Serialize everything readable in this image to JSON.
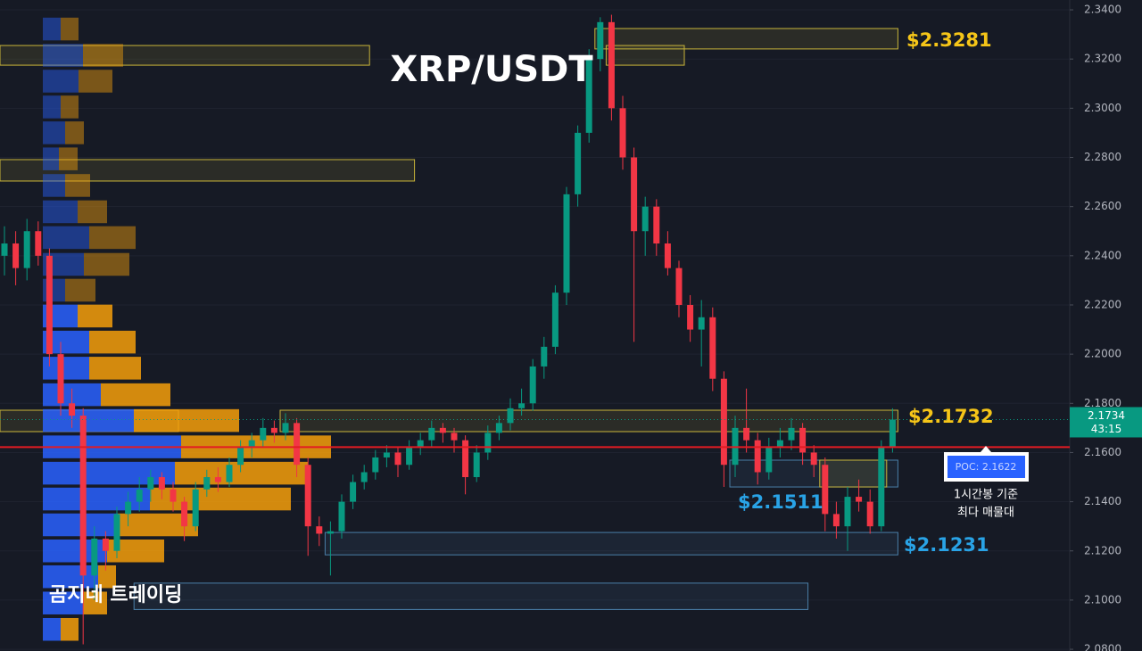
{
  "chart_data": {
    "type": "candlestick",
    "title": "XRP/USDT",
    "watermark": "곰지네 트레이딩",
    "ylim": [
      2.0793,
      2.344
    ],
    "yticks": [
      {
        "value": 2.34,
        "label": "2.3400"
      },
      {
        "value": 2.32,
        "label": "2.3200"
      },
      {
        "value": 2.3,
        "label": "2.3000"
      },
      {
        "value": 2.28,
        "label": "2.2800"
      },
      {
        "value": 2.26,
        "label": "2.2600"
      },
      {
        "value": 2.24,
        "label": "2.2400"
      },
      {
        "value": 2.22,
        "label": "2.2200"
      },
      {
        "value": 2.2,
        "label": "2.2000"
      },
      {
        "value": 2.18,
        "label": "2.1800"
      },
      {
        "value": 2.16,
        "label": "2.1600"
      },
      {
        "value": 2.14,
        "label": "2.1400"
      },
      {
        "value": 2.12,
        "label": "2.1200"
      },
      {
        "value": 2.1,
        "label": "2.1000"
      },
      {
        "value": 2.08,
        "label": "2.0800"
      }
    ],
    "grid": true,
    "up_color": "#089981",
    "down_color": "#f23645",
    "ohlc": [
      [
        2.24,
        2.252,
        2.232,
        2.245
      ],
      [
        2.245,
        2.25,
        2.228,
        2.235
      ],
      [
        2.235,
        2.255,
        2.23,
        2.25
      ],
      [
        2.25,
        2.254,
        2.236,
        2.24
      ],
      [
        2.24,
        2.243,
        2.195,
        2.2
      ],
      [
        2.2,
        2.205,
        2.175,
        2.18
      ],
      [
        2.18,
        2.186,
        2.17,
        2.175
      ],
      [
        2.175,
        2.178,
        2.082,
        2.11
      ],
      [
        2.11,
        2.13,
        2.1,
        2.125
      ],
      [
        2.125,
        2.128,
        2.112,
        2.12
      ],
      [
        2.12,
        2.138,
        2.117,
        2.135
      ],
      [
        2.135,
        2.144,
        2.13,
        2.14
      ],
      [
        2.14,
        2.15,
        2.136,
        2.145
      ],
      [
        2.145,
        2.153,
        2.14,
        2.15
      ],
      [
        2.15,
        2.152,
        2.141,
        2.145
      ],
      [
        2.145,
        2.148,
        2.136,
        2.14
      ],
      [
        2.14,
        2.142,
        2.124,
        2.13
      ],
      [
        2.13,
        2.148,
        2.128,
        2.145
      ],
      [
        2.145,
        2.153,
        2.142,
        2.15
      ],
      [
        2.15,
        2.154,
        2.144,
        2.148
      ],
      [
        2.148,
        2.158,
        2.146,
        2.155
      ],
      [
        2.155,
        2.165,
        2.152,
        2.162
      ],
      [
        2.162,
        2.168,
        2.158,
        2.165
      ],
      [
        2.165,
        2.174,
        2.162,
        2.17
      ],
      [
        2.17,
        2.173,
        2.164,
        2.168
      ],
      [
        2.168,
        2.176,
        2.165,
        2.172
      ],
      [
        2.172,
        2.174,
        2.15,
        2.155
      ],
      [
        2.155,
        2.158,
        2.118,
        2.13
      ],
      [
        2.13,
        2.134,
        2.122,
        2.127
      ],
      [
        2.127,
        2.132,
        2.11,
        2.128
      ],
      [
        2.128,
        2.143,
        2.125,
        2.14
      ],
      [
        2.14,
        2.151,
        2.137,
        2.148
      ],
      [
        2.148,
        2.155,
        2.145,
        2.152
      ],
      [
        2.152,
        2.161,
        2.149,
        2.158
      ],
      [
        2.158,
        2.163,
        2.154,
        2.16
      ],
      [
        2.16,
        2.162,
        2.15,
        2.155
      ],
      [
        2.155,
        2.165,
        2.153,
        2.162
      ],
      [
        2.162,
        2.168,
        2.159,
        2.165
      ],
      [
        2.165,
        2.173,
        2.162,
        2.17
      ],
      [
        2.17,
        2.172,
        2.164,
        2.168
      ],
      [
        2.168,
        2.17,
        2.16,
        2.165
      ],
      [
        2.165,
        2.167,
        2.143,
        2.15
      ],
      [
        2.15,
        2.163,
        2.148,
        2.16
      ],
      [
        2.16,
        2.171,
        2.157,
        2.168
      ],
      [
        2.168,
        2.175,
        2.165,
        2.172
      ],
      [
        2.172,
        2.182,
        2.169,
        2.178
      ],
      [
        2.178,
        2.186,
        2.175,
        2.18
      ],
      [
        2.18,
        2.198,
        2.177,
        2.195
      ],
      [
        2.195,
        2.207,
        2.19,
        2.203
      ],
      [
        2.203,
        2.228,
        2.2,
        2.225
      ],
      [
        2.225,
        2.268,
        2.22,
        2.265
      ],
      [
        2.265,
        2.293,
        2.26,
        2.29
      ],
      [
        2.29,
        2.324,
        2.286,
        2.32
      ],
      [
        2.32,
        2.337,
        2.315,
        2.335
      ],
      [
        2.335,
        2.338,
        2.295,
        2.3
      ],
      [
        2.3,
        2.305,
        2.275,
        2.28
      ],
      [
        2.28,
        2.284,
        2.205,
        2.25
      ],
      [
        2.25,
        2.264,
        2.24,
        2.26
      ],
      [
        2.26,
        2.263,
        2.24,
        2.245
      ],
      [
        2.245,
        2.25,
        2.232,
        2.235
      ],
      [
        2.235,
        2.238,
        2.215,
        2.22
      ],
      [
        2.22,
        2.224,
        2.205,
        2.21
      ],
      [
        2.21,
        2.222,
        2.195,
        2.215
      ],
      [
        2.215,
        2.219,
        2.185,
        2.19
      ],
      [
        2.19,
        2.193,
        2.146,
        2.155
      ],
      [
        2.155,
        2.175,
        2.15,
        2.17
      ],
      [
        2.17,
        2.186,
        2.16,
        2.165
      ],
      [
        2.165,
        2.168,
        2.147,
        2.152
      ],
      [
        2.152,
        2.166,
        2.149,
        2.162
      ],
      [
        2.162,
        2.17,
        2.158,
        2.165
      ],
      [
        2.165,
        2.174,
        2.161,
        2.17
      ],
      [
        2.17,
        2.172,
        2.155,
        2.16
      ],
      [
        2.16,
        2.163,
        2.15,
        2.155
      ],
      [
        2.155,
        2.158,
        2.128,
        2.135
      ],
      [
        2.135,
        2.14,
        2.125,
        2.13
      ],
      [
        2.13,
        2.146,
        2.12,
        2.142
      ],
      [
        2.142,
        2.149,
        2.136,
        2.14
      ],
      [
        2.14,
        2.145,
        2.127,
        2.13
      ],
      [
        2.13,
        2.165,
        2.128,
        2.162
      ],
      [
        2.162,
        2.178,
        2.16,
        2.1734
      ]
    ],
    "volume_profile": {
      "levels": [
        2.3322,
        2.3215,
        2.311,
        2.3005,
        2.29,
        2.2794,
        2.2686,
        2.2579,
        2.2474,
        2.2365,
        2.226,
        2.2155,
        2.2049,
        2.1943,
        2.1835,
        2.173,
        2.1623,
        2.1516,
        2.1411,
        2.1306,
        2.12,
        2.1095,
        2.0988,
        2.0881
      ],
      "buy": [
        20,
        45,
        40,
        20,
        25,
        18,
        25,
        39,
        52,
        46,
        25,
        39,
        52,
        52,
        65,
        102,
        155,
        148,
        120,
        84,
        72,
        62,
        45,
        20
      ],
      "sell": [
        20,
        45,
        38,
        20,
        21,
        21,
        28,
        33,
        52,
        51,
        34,
        39,
        52,
        58,
        78,
        118,
        168,
        149,
        158,
        90,
        64,
        20,
        27,
        20
      ],
      "buy_color": "#2962ff",
      "sell_color": "#f59f0b"
    },
    "zones": [
      {
        "low": 2.3241,
        "high": 2.3324,
        "from_bar": 53,
        "to_bar": 79,
        "color": "#c9b53a"
      },
      {
        "low": 2.3175,
        "high": 2.3255,
        "from_bar": 0,
        "to_bar": 32,
        "color": "#c9b53a"
      },
      {
        "low": 2.3175,
        "high": 2.3255,
        "from_bar": 54,
        "to_bar": 60,
        "color": "#c9b53a"
      },
      {
        "low": 2.2704,
        "high": 2.2791,
        "from_bar": 0,
        "to_bar": 36,
        "color": "#c9b53a"
      },
      {
        "low": 2.1685,
        "high": 2.1772,
        "from_bar": 25,
        "to_bar": 79,
        "color": "#c9b53a"
      },
      {
        "low": 2.1685,
        "high": 2.1772,
        "from_bar": 0,
        "to_bar": 15,
        "color": "#c9b53a"
      },
      {
        "low": 2.146,
        "high": 2.1569,
        "from_bar": 65,
        "to_bar": 79,
        "color": "#4a7fa8"
      },
      {
        "low": 2.146,
        "high": 2.1569,
        "from_bar": 73,
        "to_bar": 78,
        "color": "#c9b53a"
      },
      {
        "low": 2.1184,
        "high": 2.1275,
        "from_bar": 29,
        "to_bar": 79,
        "color": "#4a7fa8"
      },
      {
        "low": 2.0962,
        "high": 2.1069,
        "from_bar": 12,
        "to_bar": 71,
        "color": "#4a7fa8"
      }
    ],
    "poc": {
      "value": 2.1622,
      "label": "POC: 2.1622",
      "note": [
        "1시간봉 기준",
        "최다 매물대"
      ],
      "color": "#e31b23"
    },
    "annotations": [
      {
        "text": "$2.3281",
        "color": "#f5c518"
      },
      {
        "text": "$2.1732",
        "color": "#f5c518"
      },
      {
        "text": "$2.1511",
        "color": "#29a3e6"
      },
      {
        "text": "$2.1231",
        "color": "#29a3e6"
      }
    ],
    "last_price": {
      "label": "2.1734",
      "countdown": "43:15"
    }
  }
}
